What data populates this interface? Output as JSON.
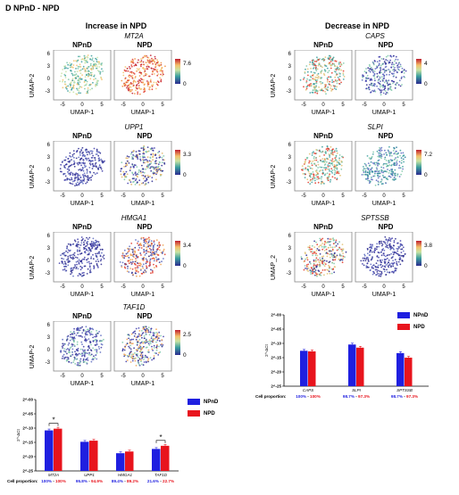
{
  "panel": {
    "label": "D  NPnD - NPD"
  },
  "left_title": "Increase in NPD",
  "right_title": "Decrease in NPD",
  "cond_left": "NPnD",
  "cond_right": "NPD",
  "axis_x": "UMAP-1",
  "axis_y": "UMAP-2",
  "axis_y_alt": "UMAP_2",
  "umap_left": [
    {
      "gene": "MT2A",
      "max": "7.6",
      "min": "0"
    },
    {
      "gene": "UPP1",
      "max": "3.3",
      "min": "0"
    },
    {
      "gene": "HMGA1",
      "max": "3.4",
      "min": "0"
    },
    {
      "gene": "TAF1D",
      "max": "2.5",
      "min": "0"
    }
  ],
  "umap_right": [
    {
      "gene": "CAPS",
      "max": "4",
      "min": "0"
    },
    {
      "gene": "SLPI",
      "max": "7.2",
      "min": "0"
    },
    {
      "gene": "SPTSSB",
      "max": "3.8",
      "min": "0"
    }
  ],
  "legend": {
    "a": "NPnD",
    "b": "NPD"
  },
  "colors": {
    "npnd": "#1f1fe0",
    "npd": "#e8141d"
  },
  "chart_data": [
    {
      "type": "bar",
      "ylabel": "2^-ΔCt",
      "ytick_labels": [
        "2^-25",
        "2^-20",
        "2^-15",
        "2^-10",
        "2^-05",
        "2^-00"
      ],
      "categories": [
        "MT2A",
        "UPP1",
        "HMGA1",
        "TAF1D"
      ],
      "series": [
        {
          "name": "NPnD",
          "values": [
            -10.8,
            -14.8,
            -18.8,
            -17.3
          ]
        },
        {
          "name": "NPD",
          "values": [
            -10.2,
            -14.4,
            -18.2,
            -16.2
          ]
        }
      ],
      "significance": [
        "*",
        "",
        "",
        "*"
      ],
      "cell_proportion_label": "Cell proportion:",
      "cell_proportion": [
        {
          "a": "100%",
          "b": "100%"
        },
        {
          "a": "95.8%",
          "b": "94.9%"
        },
        {
          "a": "89.4%",
          "b": "89.2%"
        },
        {
          "a": "21.6%",
          "b": "22.7%"
        }
      ]
    },
    {
      "type": "bar",
      "ylabel": "2^-ΔCt",
      "ytick_labels": [
        "2^-25",
        "2^-20",
        "2^-15",
        "2^-10",
        "2^-05",
        "2^-00"
      ],
      "categories": [
        "CAPS",
        "SLPI",
        "SPTSSB"
      ],
      "series": [
        {
          "name": "NPnD",
          "values": [
            -12.6,
            -10.4,
            -13.4
          ]
        },
        {
          "name": "NPD",
          "values": [
            -12.8,
            -11.5,
            -15.0
          ]
        }
      ],
      "significance": [
        "",
        "",
        ""
      ],
      "cell_proportion_label": "Cell proportion:",
      "cell_proportion": [
        {
          "a": "100%",
          "b": "100%"
        },
        {
          "a": "98.7%",
          "b": "97.3%"
        },
        {
          "a": "98.7%",
          "b": "97.3%"
        }
      ]
    }
  ]
}
